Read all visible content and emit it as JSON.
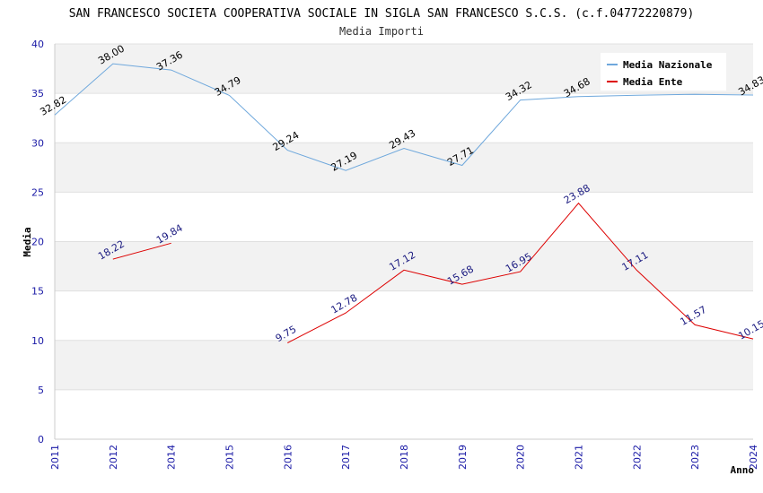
{
  "chart_data": {
    "type": "line",
    "title": "SAN FRANCESCO SOCIETA COOPERATIVA SOCIALE IN SIGLA SAN FRANCESCO S.C.S. (c.f.04772220879)",
    "subtitle": "Media Importi",
    "xlabel": "Anno",
    "ylabel": "Media",
    "ylim": [
      0,
      40
    ],
    "yticks": [
      "0",
      "5",
      "10",
      "15",
      "20",
      "25",
      "30",
      "35",
      "40"
    ],
    "categories": [
      "2011",
      "2012",
      "2014",
      "2015",
      "2016",
      "2017",
      "2018",
      "2019",
      "2020",
      "2021",
      "2022",
      "2023",
      "2024"
    ],
    "series": [
      {
        "name": "Media Nazionale",
        "color": "#6fa8dc",
        "values": [
          32.82,
          38.0,
          37.36,
          34.79,
          29.24,
          27.19,
          29.43,
          27.71,
          34.32,
          34.68,
          34.8,
          34.9,
          34.83
        ],
        "labels": [
          "32.82",
          "38.00",
          "37.36",
          "34.79",
          "29.24",
          "27.19",
          "29.43",
          "27.71",
          "34.32",
          "34.68",
          null,
          null,
          "34.83"
        ]
      },
      {
        "name": "Media Ente",
        "color": "#dd0000",
        "values": [
          null,
          18.22,
          19.84,
          null,
          9.75,
          12.78,
          17.12,
          15.68,
          16.95,
          23.88,
          17.11,
          11.57,
          10.15
        ],
        "labels": [
          null,
          "18.22",
          "19.84",
          null,
          "9.75",
          "12.78",
          "17.12",
          "15.68",
          "16.95",
          "23.88",
          "17.11",
          "11.57",
          "10.15"
        ]
      }
    ],
    "legend": "top-right",
    "grid": true,
    "band_colors": [
      "#f2f2f2",
      "#ffffff"
    ]
  }
}
